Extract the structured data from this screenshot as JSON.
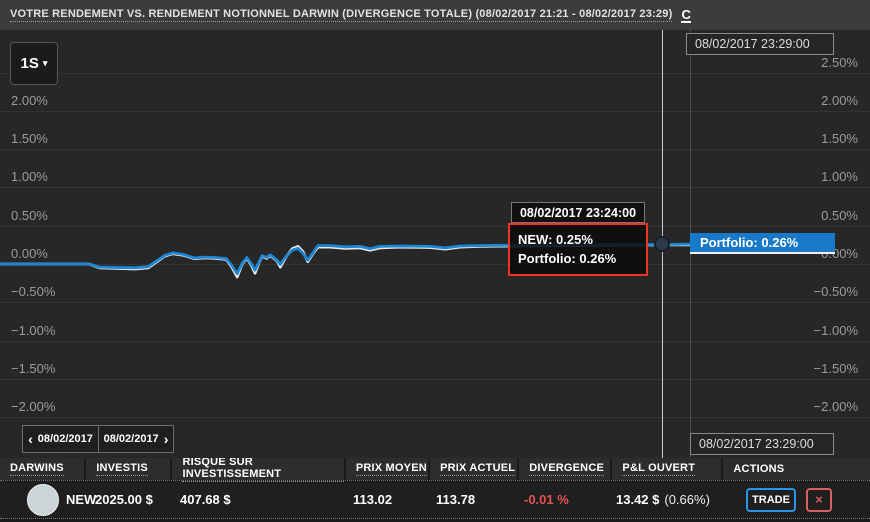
{
  "header": {
    "title": "VOTRE RENDEMENT VS. RENDEMENT NOTIONNEL DARWIN (DIVERGENCE TOTALE) (08/02/2017 21:21 - 08/02/2017 23:29)",
    "refresh_label": "C"
  },
  "toolbar": {
    "range_label": "1S",
    "caret": "▾"
  },
  "colors": {
    "portfolio_line": "#1e87d5",
    "new_line": "#e9e9e9",
    "last_label_bg": "#1779c8",
    "tooltip_border_red": "#ef3425",
    "divergence_red": "#e25454",
    "trade_border_blue": "#2596e8",
    "close_border_red": "#d96060",
    "chart_bg": "#272727",
    "topbar_bg": "#3c3c3c"
  },
  "chart_data": {
    "type": "line",
    "title": "Votre rendement vs. rendement notionnel DARWIN (divergence totale)",
    "x_unit": "minutes from 08/02/2017 21:21",
    "x_range": [
      0,
      128
    ],
    "ylim": [
      -2.25,
      2.75
    ],
    "grid": true,
    "ticks": [
      {
        "v": 2.5,
        "label": "2.50%",
        "sides": "right"
      },
      {
        "v": 2.0,
        "label": "2.00%",
        "sides": "both"
      },
      {
        "v": 1.5,
        "label": "1.50%",
        "sides": "both"
      },
      {
        "v": 1.0,
        "label": "1.00%",
        "sides": "both"
      },
      {
        "v": 0.5,
        "label": "0.50%",
        "sides": "both"
      },
      {
        "v": 0.0,
        "label": "0.00%",
        "sides": "both"
      },
      {
        "v": -0.5,
        "label": "−0.50%",
        "sides": "both"
      },
      {
        "v": -1.0,
        "label": "−1.00%",
        "sides": "both"
      },
      {
        "v": -1.5,
        "label": "−1.50%",
        "sides": "both"
      },
      {
        "v": -2.0,
        "label": "−2.00%",
        "sides": "both"
      }
    ],
    "series": [
      {
        "name": "NEW",
        "color": "#e9e9e9",
        "points": [
          [
            0,
            0
          ],
          [
            16.5,
            0
          ],
          [
            18.5,
            -0.05
          ],
          [
            25,
            -0.065
          ],
          [
            27.5,
            -0.05
          ],
          [
            29.5,
            0.05
          ],
          [
            30.5,
            0.1
          ],
          [
            32,
            0.135
          ],
          [
            34,
            0.115
          ],
          [
            36,
            0.07
          ],
          [
            38,
            0.08
          ],
          [
            40,
            0.075
          ],
          [
            42,
            0.06
          ],
          [
            43,
            -0.04
          ],
          [
            44,
            -0.17
          ],
          [
            44.9,
            -0.005
          ],
          [
            45.8,
            0.075
          ],
          [
            46.6,
            -0.01
          ],
          [
            47.3,
            -0.12
          ],
          [
            48,
            0.01
          ],
          [
            48.6,
            0.1
          ],
          [
            49.5,
            0.075
          ],
          [
            50.1,
            0.11
          ],
          [
            50.8,
            0.075
          ],
          [
            51.4,
            0.04
          ],
          [
            52,
            -0.04
          ],
          [
            52.9,
            0.075
          ],
          [
            54.2,
            0.2
          ],
          [
            55.3,
            0.23
          ],
          [
            56.2,
            0.16
          ],
          [
            57.1,
            0.03
          ],
          [
            58.1,
            0.14
          ],
          [
            59,
            0.22
          ],
          [
            61.2,
            0.22
          ],
          [
            64,
            0.205
          ],
          [
            66.8,
            0.21
          ],
          [
            68.6,
            0.18
          ],
          [
            70.5,
            0.21
          ],
          [
            74.2,
            0.22
          ],
          [
            79.8,
            0.215
          ],
          [
            82.6,
            0.195
          ],
          [
            85.3,
            0.22
          ],
          [
            89,
            0.23
          ],
          [
            94.6,
            0.235
          ],
          [
            102,
            0.24
          ],
          [
            111.3,
            0.245
          ],
          [
            123,
            0.25
          ],
          [
            128,
            0.25
          ]
        ]
      },
      {
        "name": "Portfolio",
        "color": "#1e87d5",
        "points": [
          [
            0,
            0
          ],
          [
            16.5,
            0
          ],
          [
            18.5,
            -0.04
          ],
          [
            25,
            -0.05
          ],
          [
            27.5,
            -0.035
          ],
          [
            29.5,
            0.06
          ],
          [
            30.5,
            0.11
          ],
          [
            32,
            0.145
          ],
          [
            34,
            0.125
          ],
          [
            36,
            0.08
          ],
          [
            38,
            0.09
          ],
          [
            40,
            0.085
          ],
          [
            42,
            0.07
          ],
          [
            43,
            -0.02
          ],
          [
            44,
            -0.125
          ],
          [
            44.9,
            0.005
          ],
          [
            45.8,
            0.085
          ],
          [
            46.6,
            0.005
          ],
          [
            47.3,
            -0.08
          ],
          [
            48,
            0.02
          ],
          [
            48.6,
            0.11
          ],
          [
            49.5,
            0.085
          ],
          [
            50.1,
            0.12
          ],
          [
            50.8,
            0.085
          ],
          [
            51.4,
            0.05
          ],
          [
            52,
            -0.005
          ],
          [
            52.9,
            0.085
          ],
          [
            54.2,
            0.18
          ],
          [
            55.3,
            0.205
          ],
          [
            56.2,
            0.14
          ],
          [
            57.1,
            0.05
          ],
          [
            58.1,
            0.15
          ],
          [
            59,
            0.24
          ],
          [
            61.2,
            0.24
          ],
          [
            64,
            0.225
          ],
          [
            66.8,
            0.23
          ],
          [
            68.6,
            0.2
          ],
          [
            70.5,
            0.23
          ],
          [
            74.2,
            0.235
          ],
          [
            79.8,
            0.23
          ],
          [
            82.6,
            0.21
          ],
          [
            85.3,
            0.235
          ],
          [
            89,
            0.24
          ],
          [
            94.6,
            0.245
          ],
          [
            102,
            0.25
          ],
          [
            111.3,
            0.255
          ],
          [
            123,
            0.255
          ],
          [
            128,
            0.26
          ]
        ]
      }
    ],
    "crosshair": {
      "t": 123
    },
    "legend_position": "none"
  },
  "tooltip": {
    "time": "08/02/2017 23:24:00",
    "rows": [
      "NEW: 0.25%",
      "Portfolio: 0.26%"
    ]
  },
  "last_label": "Portfolio: 0.26%",
  "axis_boxes": {
    "top_right": "08/02/2017 23:29:00",
    "bottom_right": "08/02/2017 23:29:00"
  },
  "nav": {
    "prev_icon": "‹",
    "prev_label": "08/02/2017",
    "next_label": "08/02/2017",
    "next_icon": "›"
  },
  "table": {
    "headers": [
      "DARWINS",
      "INVESTIS",
      "RISQUE SUR INVESTISSEMENT",
      "PRIX MOYEN",
      "PRIX ACTUEL",
      "DIVERGENCE",
      "P&L OUVERT",
      "ACTIONS"
    ],
    "row": {
      "name": "NEW",
      "investis": "2025.00 $",
      "risque": "407.68 $",
      "prix_moyen": "113.02",
      "prix_actuel": "113.78",
      "divergence": "-0.01 %",
      "pl_value": "13.42 $",
      "pl_pct": "(0.66%)",
      "trade_label": "TRADE",
      "close_icon": "×"
    }
  }
}
